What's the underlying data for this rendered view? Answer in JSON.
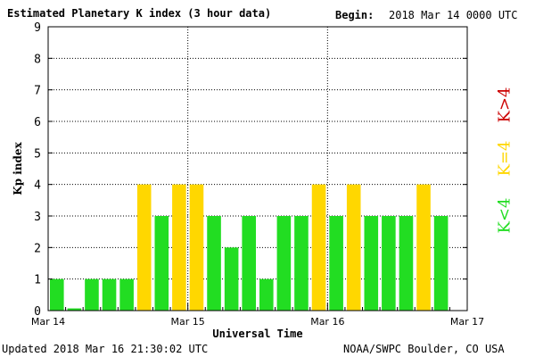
{
  "header": {
    "title": "Estimated Planetary K index (3 hour data)",
    "begin_label": "Begin:",
    "begin_value": "2018 Mar 14 0000 UTC"
  },
  "footer": {
    "updated": "Updated 2018 Mar 16 21:30:02 UTC",
    "source": "NOAA/SWPC Boulder, CO USA"
  },
  "legend": [
    {
      "label": "K<4",
      "color": "#22dd22"
    },
    {
      "label": "K=4",
      "color": "#ffd700"
    },
    {
      "label": "K>4",
      "color": "#cc0000"
    }
  ],
  "chart_data": {
    "type": "bar",
    "xlabel": "Universal Time",
    "ylabel": "Kp index",
    "ylim": [
      0,
      9
    ],
    "yticks": [
      0,
      1,
      2,
      3,
      4,
      5,
      6,
      7,
      8,
      9
    ],
    "xticks": [
      "Mar 14",
      "Mar 15",
      "Mar 16",
      "Mar 17"
    ],
    "grid": true,
    "values": [
      1,
      0.07,
      1,
      1,
      1,
      4,
      3,
      4,
      4,
      3,
      2,
      3,
      1,
      3,
      3,
      4,
      3,
      4,
      3,
      3,
      3,
      4,
      3
    ],
    "colors": {
      "below": "#22dd22",
      "equal": "#ffd700",
      "above": "#cc0000"
    }
  }
}
